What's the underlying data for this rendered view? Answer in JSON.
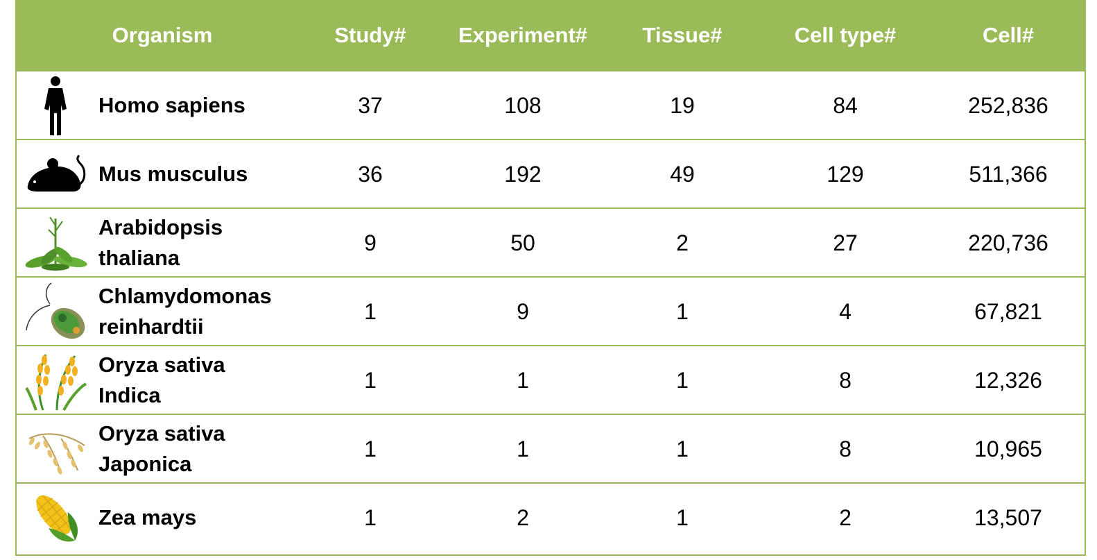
{
  "table": {
    "headers": {
      "organism": "Organism",
      "study": "Study#",
      "experiment": "Experiment#",
      "tissue": "Tissue#",
      "cell_type": "Cell type#",
      "cell": "Cell#"
    },
    "rows": [
      {
        "icon": "human-icon",
        "organism_line1": "Homo sapiens",
        "organism_line2": "",
        "study": "37",
        "experiment": "108",
        "tissue": "19",
        "cell_type": "84",
        "cell": "252,836"
      },
      {
        "icon": "mouse-icon",
        "organism_line1": "Mus musculus",
        "organism_line2": "",
        "study": "36",
        "experiment": "192",
        "tissue": "49",
        "cell_type": "129",
        "cell": "511,366"
      },
      {
        "icon": "arabidopsis-icon",
        "organism_line1": "Arabidopsis",
        "organism_line2": "thaliana",
        "study": "9",
        "experiment": "50",
        "tissue": "2",
        "cell_type": "27",
        "cell": "220,736"
      },
      {
        "icon": "chlamydomonas-icon",
        "organism_line1": "Chlamydomonas",
        "organism_line2": "reinhardtii",
        "study": "1",
        "experiment": "9",
        "tissue": "1",
        "cell_type": "4",
        "cell": "67,821"
      },
      {
        "icon": "rice-indica-icon",
        "organism_line1": "Oryza sativa",
        "organism_line2": "Indica",
        "study": "1",
        "experiment": "1",
        "tissue": "1",
        "cell_type": "8",
        "cell": "12,326"
      },
      {
        "icon": "rice-japonica-icon",
        "organism_line1": "Oryza sativa",
        "organism_line2": "Japonica",
        "study": "1",
        "experiment": "1",
        "tissue": "1",
        "cell_type": "8",
        "cell": "10,965"
      },
      {
        "icon": "corn-icon",
        "organism_line1": "Zea mays",
        "organism_line2": "",
        "study": "1",
        "experiment": "2",
        "tissue": "1",
        "cell_type": "2",
        "cell": "13,507"
      }
    ]
  },
  "colors": {
    "header_bg": "#9bbb59",
    "header_text": "#ffffff",
    "border": "#9bbb59"
  }
}
